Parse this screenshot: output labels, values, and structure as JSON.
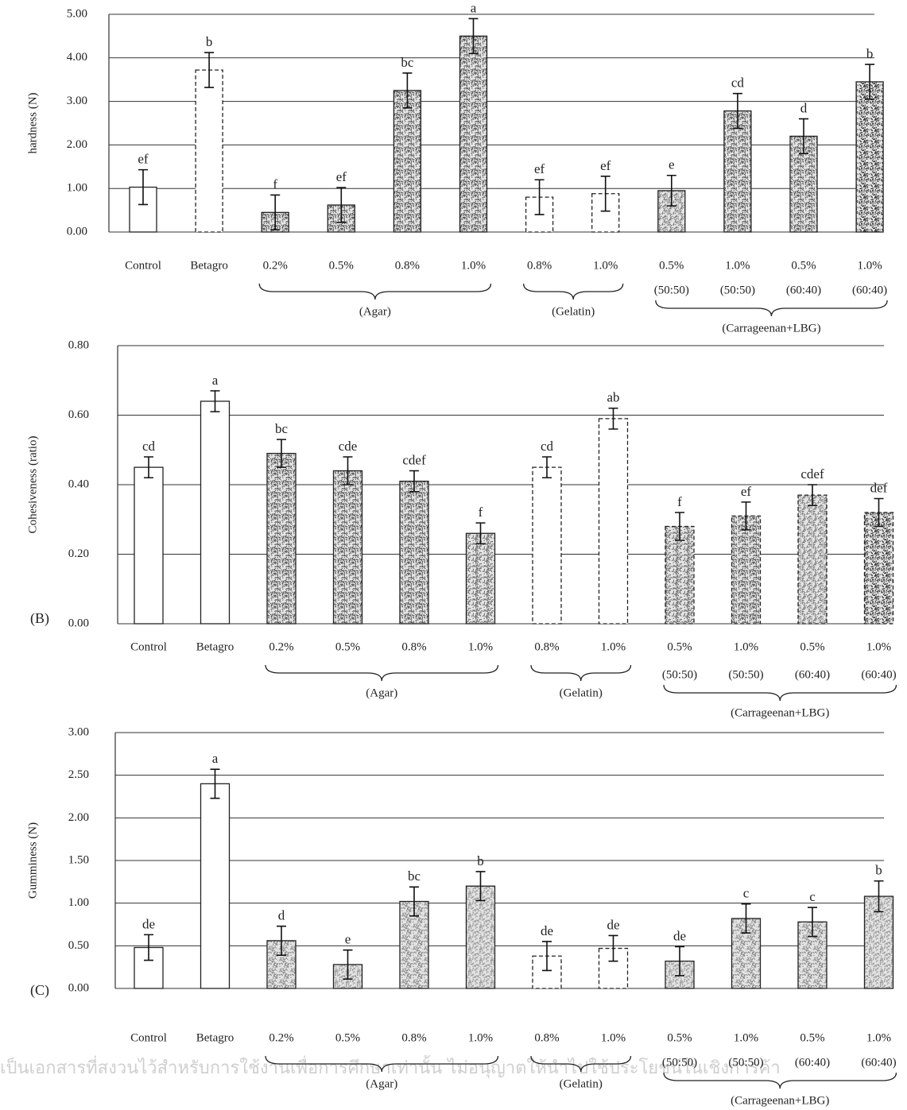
{
  "charts": [
    {
      "chart_data": {
        "type": "bar",
        "y_label": "hardness (N)",
        "categories": [
          "Control",
          "Betagro",
          "0.2%",
          "0.5%",
          "0.8%",
          "1.0%",
          "0.8%",
          "1.0%",
          "0.5%",
          "1.0%",
          "0.5%",
          "1.0%"
        ],
        "sublabels": [
          null,
          null,
          null,
          null,
          null,
          null,
          null,
          null,
          "(50:50)",
          "(50:50)",
          "(60:40)",
          "(60:40)"
        ],
        "groups": [
          "(Agar)",
          "(Gelatin)",
          "(Carrageenan+LBG)"
        ],
        "values": [
          1.03,
          3.72,
          0.45,
          0.62,
          3.25,
          4.5,
          0.8,
          0.88,
          0.95,
          2.78,
          2.2,
          3.45
        ],
        "errors": [
          0.4,
          0.4,
          0.4,
          0.4,
          0.4,
          0.4,
          0.4,
          0.4,
          0.35,
          0.4,
          0.4,
          0.4
        ],
        "letters": [
          "ef",
          "b",
          "f",
          "ef",
          "bc",
          "a",
          "ef",
          "ef",
          "e",
          "cd",
          "d",
          "b"
        ],
        "colors": [
          "#ffffff",
          "#ffffff",
          "#555555",
          "#555555",
          "#555555",
          "#555555",
          "#ffffff",
          "#ffffff",
          "#777777",
          "#555555",
          "#555555",
          "#333333"
        ],
        "dashed": [
          false,
          true,
          false,
          false,
          false,
          false,
          true,
          true,
          false,
          false,
          false,
          false
        ],
        "ylim": [
          0,
          5
        ],
        "yticks": [
          {
            "value": 0,
            "label": "0.00"
          },
          {
            "value": 1,
            "label": "1.00"
          },
          {
            "value": 2,
            "label": "2.00"
          },
          {
            "value": 3,
            "label": "3.00"
          },
          {
            "value": 4,
            "label": "4.00"
          },
          {
            "value": 5,
            "label": "5.00"
          }
        ],
        "grid": true
      }
    },
    {
      "chart_data": {
        "type": "bar",
        "y_label": "Cohesiveness (ratio)",
        "panel_label": "(B)",
        "categories": [
          "Control",
          "Betagro",
          "0.2%",
          "0.5%",
          "0.8%",
          "1.0%",
          "0.8%",
          "1.0%",
          "0.5%",
          "1.0%",
          "0.5%",
          "1.0%"
        ],
        "sublabels": [
          null,
          null,
          null,
          null,
          null,
          null,
          null,
          null,
          "(50:50)",
          "(50:50)",
          "(60:40)",
          "(60:40)"
        ],
        "groups": [
          "(Agar)",
          "(Gelatin)",
          "(Carrageenan+LBG)"
        ],
        "values": [
          0.45,
          0.64,
          0.49,
          0.44,
          0.41,
          0.26,
          0.45,
          0.59,
          0.28,
          0.31,
          0.37,
          0.32
        ],
        "errors": [
          0.03,
          0.03,
          0.04,
          0.04,
          0.03,
          0.03,
          0.03,
          0.03,
          0.04,
          0.04,
          0.03,
          0.04
        ],
        "letters": [
          "cd",
          "a",
          "bc",
          "cde",
          "cdef",
          "f",
          "cd",
          "ab",
          "f",
          "ef",
          "cdef",
          "def"
        ],
        "colors": [
          "#ffffff",
          "#ffffff",
          "#555555",
          "#555555",
          "#555555",
          "#666666",
          "#ffffff",
          "#ffffff",
          "#666666",
          "#555555",
          "#777777",
          "#333333"
        ],
        "dashed": [
          false,
          false,
          false,
          false,
          false,
          false,
          true,
          true,
          true,
          true,
          true,
          true
        ],
        "ylim": [
          0,
          0.8
        ],
        "yticks": [
          {
            "value": 0,
            "label": "0.00"
          },
          {
            "value": 0.2,
            "label": "0.20"
          },
          {
            "value": 0.4,
            "label": "0.40"
          },
          {
            "value": 0.6,
            "label": "0.60"
          },
          {
            "value": 0.8,
            "label": "0.80"
          }
        ],
        "grid": true
      }
    },
    {
      "chart_data": {
        "type": "bar",
        "y_label": "Gumminess (N)",
        "panel_label": "(C)",
        "categories": [
          "Control",
          "Betagro",
          "0.2%",
          "0.5%",
          "0.8%",
          "1.0%",
          "0.8%",
          "1.0%",
          "0.5%",
          "1.0%",
          "0.5%",
          "1.0%"
        ],
        "sublabels": [
          null,
          null,
          null,
          null,
          null,
          null,
          null,
          null,
          "(50:50)",
          "(50:50)",
          "(60:40)",
          "(60:40)"
        ],
        "groups": [
          "(Agar)",
          "(Gelatin)",
          "(Carrageenan+LBG)"
        ],
        "values": [
          0.48,
          2.4,
          0.56,
          0.28,
          1.02,
          1.2,
          0.38,
          0.47,
          0.32,
          0.82,
          0.78,
          1.08
        ],
        "errors": [
          0.15,
          0.17,
          0.17,
          0.17,
          0.17,
          0.17,
          0.17,
          0.15,
          0.17,
          0.17,
          0.17,
          0.18
        ],
        "letters": [
          "de",
          "a",
          "d",
          "e",
          "bc",
          "b",
          "de",
          "de",
          "de",
          "c",
          "c",
          "b"
        ],
        "colors": [
          "#ffffff",
          "#ffffff",
          "#888888",
          "#999999",
          "#888888",
          "#999999",
          "#ffffff",
          "#ffffff",
          "#999999",
          "#888888",
          "#888888",
          "#999999"
        ],
        "dashed": [
          false,
          false,
          false,
          false,
          false,
          false,
          true,
          true,
          false,
          false,
          false,
          false
        ],
        "ylim": [
          0,
          3
        ],
        "yticks": [
          {
            "value": 0,
            "label": "0.00"
          },
          {
            "value": 0.5,
            "label": "0.50"
          },
          {
            "value": 1,
            "label": "1.00"
          },
          {
            "value": 1.5,
            "label": "1.50"
          },
          {
            "value": 2,
            "label": "2.00"
          },
          {
            "value": 2.5,
            "label": "2.50"
          },
          {
            "value": 3,
            "label": "3.00"
          }
        ],
        "grid": true
      }
    }
  ],
  "footer_note": "เป็นเอกสารที่สงวนไว้สำหรับการใช้งานเพื่อการศึกษาเท่านั้น ไม่อนุญาตให้นำไปใช้ประโยชน์ในเชิงการค้า"
}
